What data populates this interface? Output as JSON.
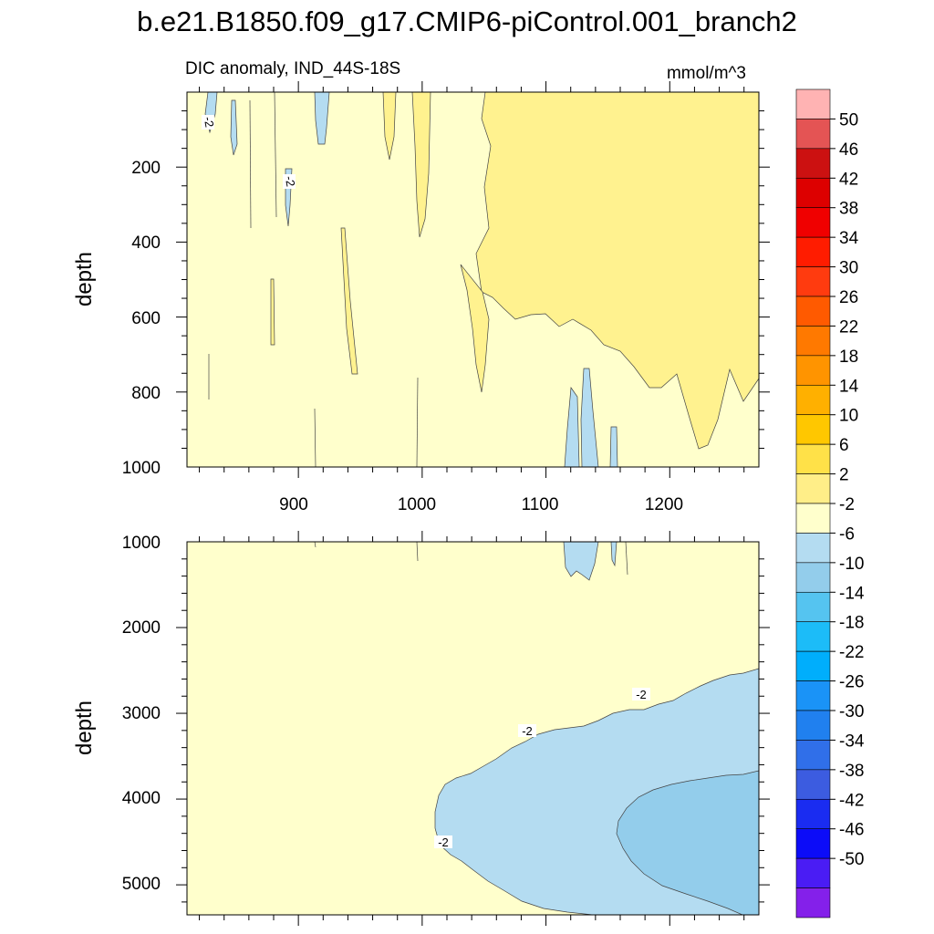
{
  "chart_data": {
    "type": "contour",
    "title": "b.e21.B1850.f09_g17.CMIP6-piControl.001_branch2",
    "left_subtitle": "DIC anomaly, IND_44S-18S",
    "right_subtitle": "mmol/m^3",
    "panels": [
      {
        "name": "upper",
        "ylabel": "depth",
        "ylim": [
          1000,
          0
        ],
        "xlim": [
          810,
          1272
        ],
        "x_ticks": [
          "900",
          "1000",
          "1100",
          "1200"
        ],
        "y_ticks": [
          "200",
          "400",
          "600",
          "800",
          "1000"
        ],
        "contour_labels": [
          "-2",
          "-2"
        ]
      },
      {
        "name": "lower",
        "ylabel": "depth",
        "ylim": [
          5350,
          1000
        ],
        "xlim": [
          810,
          1272
        ],
        "y_ticks": [
          "1000",
          "2000",
          "3000",
          "4000",
          "5000"
        ],
        "contour_labels": [
          "-2",
          "-2",
          "-2"
        ]
      }
    ],
    "colorbar": {
      "levels": [
        "50",
        "46",
        "42",
        "38",
        "34",
        "30",
        "26",
        "22",
        "18",
        "14",
        "10",
        "6",
        "2",
        "-2",
        "-6",
        "-10",
        "-14",
        "-18",
        "-22",
        "-26",
        "-30",
        "-34",
        "-38",
        "-42",
        "-46",
        "-50"
      ],
      "colors": [
        "#ffb3b3",
        "#e45454",
        "#cc1111",
        "#dd0000",
        "#f00000",
        "#ff1c00",
        "#ff3b0f",
        "#ff5a00",
        "#ff7900",
        "#ff9400",
        "#ffb000",
        "#ffc700",
        "#ffe148",
        "#ffee88",
        "#ffffcc",
        "#b4dcf1",
        "#93cdeb",
        "#55c4f0",
        "#1cbcf8",
        "#00aefc",
        "#1a93f7",
        "#2080ef",
        "#306fe9",
        "#3c5ce0",
        "#1a2cf1",
        "#0c0cf8",
        "#4a1cf4",
        "#8420ea"
      ]
    }
  }
}
